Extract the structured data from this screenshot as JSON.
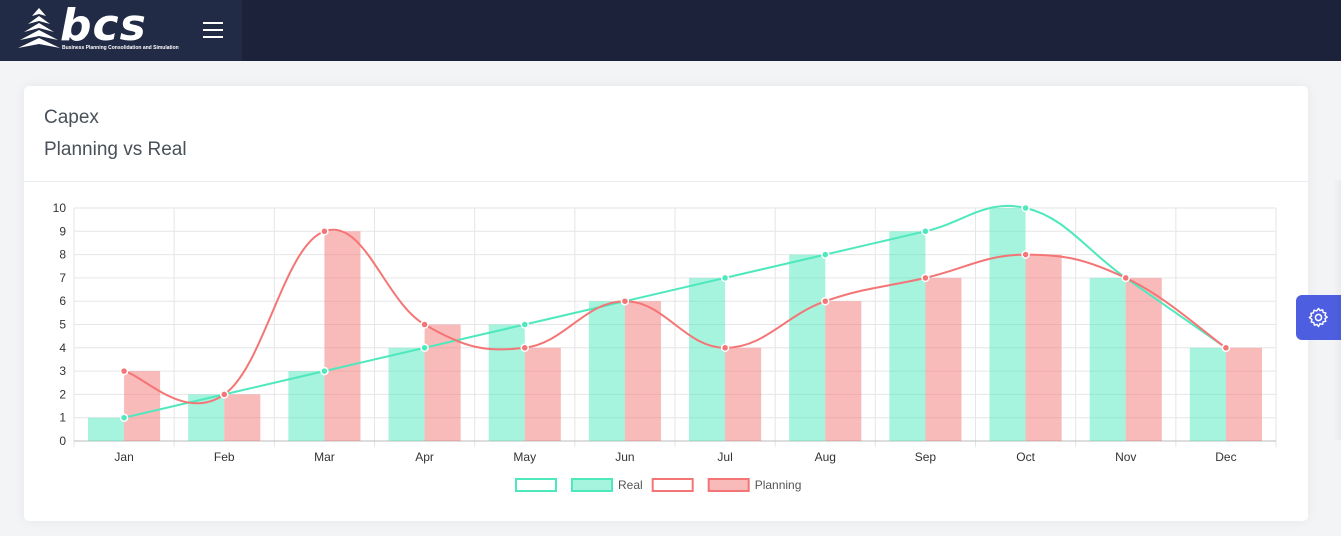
{
  "header": {
    "logo_text": "bcs",
    "logo_tagline": "Business Planning Consolidation and Simulation",
    "menu_icon": "hamburger-menu-icon",
    "bg_color": "#1b2239",
    "brand_bg_color": "#222b45"
  },
  "card": {
    "title": "Capex",
    "subtitle": "Planning vs Real"
  },
  "settings": {
    "icon": "gear-icon",
    "color": "#4d5fe0"
  },
  "chart_data": {
    "type": "bar",
    "categories": [
      "Jan",
      "Feb",
      "Mar",
      "Apr",
      "May",
      "Jun",
      "Jul",
      "Aug",
      "Sep",
      "Oct",
      "Nov",
      "Dec"
    ],
    "ylim": [
      0,
      10
    ],
    "yticks": [
      0,
      1,
      2,
      3,
      4,
      5,
      6,
      7,
      8,
      9,
      10
    ],
    "grid": true,
    "legend_position": "bottom",
    "series": [
      {
        "name": "",
        "kind": "line",
        "color": "#4ee8bd",
        "values": [
          1,
          2,
          3,
          4,
          5,
          6,
          7,
          8,
          9,
          10,
          7,
          4
        ]
      },
      {
        "name": "Real",
        "kind": "bar",
        "color": "#4ee8bd",
        "values": [
          1,
          2,
          3,
          4,
          5,
          6,
          7,
          8,
          9,
          10,
          7,
          4
        ]
      },
      {
        "name": "",
        "kind": "line",
        "color": "#f47575",
        "values": [
          3,
          2,
          9,
          5,
          4,
          6,
          4,
          6,
          7,
          8,
          7,
          4
        ]
      },
      {
        "name": "Planning",
        "kind": "bar",
        "color": "#f47575",
        "values": [
          3,
          2,
          9,
          5,
          4,
          6,
          4,
          6,
          7,
          8,
          7,
          4
        ]
      }
    ]
  }
}
